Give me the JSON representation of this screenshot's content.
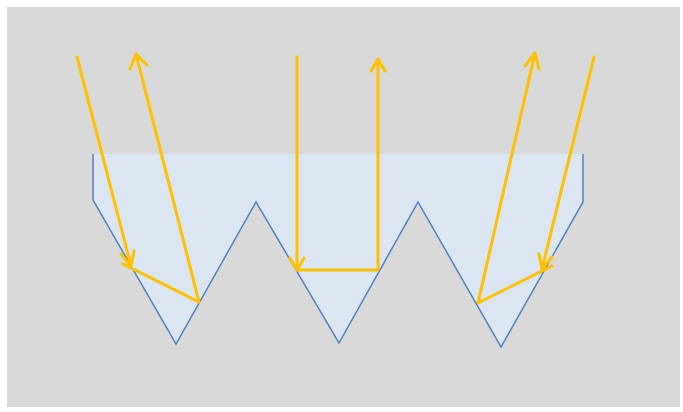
{
  "colors": {
    "canvas_background": "#d9d9d9",
    "liquid_fill": "#dce6f2",
    "surface_outline": "#4f81bd",
    "light_ray": "#ffc000"
  },
  "diagram": {
    "elements": [
      "textured-surface-profile",
      "liquid-fill",
      "incident-rays",
      "reflected-rays"
    ],
    "ray_paths": 3,
    "arrowheads": 6
  }
}
